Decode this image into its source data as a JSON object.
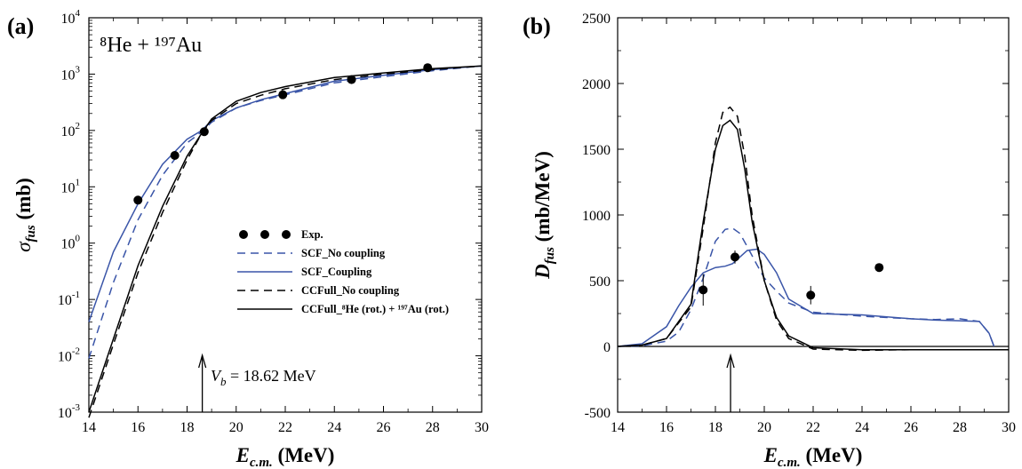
{
  "chart_data": [
    {
      "type": "line",
      "panel_label": "(a)",
      "annotation": "⁸He + ¹⁹⁷Au",
      "arrow_label": "V_b = 18.62 MeV",
      "arrow_label_parts": {
        "symbol": "V",
        "sub": "b",
        "rest": " = 18.62 MeV"
      },
      "arrow_x": 18.62,
      "xlabel": "E_c.m. (MeV)",
      "ylabel": "σ_fus (mb)",
      "xlim": [
        14,
        30
      ],
      "ylim": [
        0.001,
        10000
      ],
      "yscale": "log",
      "xticks": [
        "14",
        "16",
        "18",
        "20",
        "22",
        "24",
        "26",
        "28",
        "30"
      ],
      "yticks": [
        {
          "base": "10",
          "exp": "-3"
        },
        {
          "base": "10",
          "exp": "-2"
        },
        {
          "base": "10",
          "exp": "-1"
        },
        {
          "base": "10",
          "exp": "0"
        },
        {
          "base": "10",
          "exp": "1"
        },
        {
          "base": "10",
          "exp": "2"
        },
        {
          "base": "10",
          "exp": "3"
        },
        {
          "base": "10",
          "exp": "4"
        }
      ],
      "legend_position": "center-right",
      "series": [
        {
          "name": "Exp.",
          "style": "markers",
          "color": "#000000",
          "x": [
            16.0,
            17.5,
            18.7,
            21.9,
            24.7,
            27.8
          ],
          "y": [
            5.8,
            36,
            95,
            430,
            800,
            1300
          ]
        },
        {
          "name": "SCF_No coupling",
          "style": "dashed",
          "color": "#3a55a8",
          "x": [
            14,
            15,
            16,
            17,
            18,
            18.6,
            19,
            20,
            21,
            22,
            24,
            26,
            28,
            30
          ],
          "y": [
            0.009,
            0.2,
            2.6,
            16,
            60,
            95,
            140,
            250,
            340,
            430,
            700,
            900,
            1150,
            1400
          ]
        },
        {
          "name": "SCF_Coupling",
          "style": "solid",
          "color": "#3a55a8",
          "x": [
            14,
            15,
            16,
            17,
            18,
            18.6,
            19,
            20,
            21,
            22,
            24,
            26,
            28,
            30
          ],
          "y": [
            0.04,
            0.7,
            5,
            25,
            70,
            100,
            150,
            250,
            350,
            450,
            750,
            950,
            1200,
            1400
          ]
        },
        {
          "name": "CCFull_No coupling",
          "style": "dashed",
          "color": "#000000",
          "x": [
            14,
            15,
            16,
            17,
            18,
            18.6,
            19,
            20,
            21,
            22,
            24,
            26,
            28,
            30
          ],
          "y": [
            0.0008,
            0.016,
            0.3,
            3.5,
            30,
            90,
            150,
            300,
            420,
            550,
            800,
            1000,
            1200,
            1400
          ]
        },
        {
          "name": "CCFull_⁸He (rot.) + ¹⁹⁷Au (rot.)",
          "style": "solid",
          "color": "#000000",
          "x": [
            14,
            15,
            16,
            17,
            18,
            18.6,
            19,
            20,
            21,
            22,
            24,
            26,
            28,
            30
          ],
          "y": [
            0.001,
            0.02,
            0.4,
            4.5,
            35,
            90,
            160,
            330,
            470,
            600,
            870,
            1050,
            1250,
            1400
          ]
        }
      ]
    },
    {
      "type": "line",
      "panel_label": "(b)",
      "xlabel": "E_c.m. (MeV)",
      "ylabel": "D_fus (mb/MeV)",
      "xlim": [
        14,
        30
      ],
      "ylim": [
        -500,
        2500
      ],
      "arrow_x": 18.62,
      "xticks": [
        "14",
        "16",
        "18",
        "20",
        "22",
        "24",
        "26",
        "28",
        "30"
      ],
      "yticks": [
        "-500",
        "0",
        "500",
        "1000",
        "1500",
        "2000",
        "2500"
      ],
      "series": [
        {
          "name": "Exp.",
          "style": "markers",
          "color": "#000000",
          "x": [
            17.5,
            18.8,
            21.9,
            24.7
          ],
          "y": [
            430,
            680,
            390,
            600
          ],
          "err": [
            120,
            50,
            70,
            0
          ]
        },
        {
          "name": "SCF_No coupling",
          "style": "dashed",
          "color": "#3a55a8",
          "x": [
            14,
            15,
            16,
            16.5,
            17,
            17.5,
            18,
            18.4,
            18.7,
            19,
            19.3,
            19.7,
            20,
            20.5,
            21,
            22,
            24,
            26,
            27,
            28,
            28.8,
            29.2,
            29.4
          ],
          "y": [
            0,
            5,
            40,
            110,
            280,
            520,
            800,
            890,
            900,
            860,
            760,
            620,
            520,
            420,
            330,
            260,
            230,
            210,
            205,
            210,
            190,
            100,
            0
          ]
        },
        {
          "name": "SCF_Coupling",
          "style": "solid",
          "color": "#3a55a8",
          "x": [
            14,
            15,
            16,
            16.5,
            17,
            17.5,
            18,
            18.4,
            18.7,
            19,
            19.3,
            19.7,
            20,
            20.5,
            21,
            22,
            24,
            26,
            27,
            28,
            28.8,
            29.2,
            29.4
          ],
          "y": [
            0,
            20,
            150,
            310,
            450,
            560,
            600,
            610,
            630,
            680,
            730,
            740,
            700,
            560,
            360,
            250,
            240,
            210,
            200,
            195,
            190,
            100,
            0
          ]
        },
        {
          "name": "CCFull_No coupling",
          "style": "dashed",
          "color": "#000000",
          "x": [
            14,
            15,
            16,
            17,
            17.5,
            18,
            18.3,
            18.6,
            18.9,
            19.2,
            19.5,
            20,
            20.5,
            21,
            22,
            24,
            26,
            28,
            30
          ],
          "y": [
            0,
            10,
            60,
            300,
            900,
            1550,
            1780,
            1820,
            1750,
            1450,
            1000,
            500,
            200,
            60,
            -20,
            -30,
            -25,
            -25,
            -25
          ]
        },
        {
          "name": "CCFull_⁸He (rot.) + ¹⁹⁷Au (rot.)",
          "style": "solid",
          "color": "#000000",
          "x": [
            14,
            15,
            16,
            17,
            17.5,
            18,
            18.3,
            18.6,
            18.9,
            19.2,
            19.5,
            20,
            20.5,
            21,
            22,
            24,
            26,
            28,
            30
          ],
          "y": [
            0,
            10,
            60,
            320,
            950,
            1500,
            1680,
            1720,
            1650,
            1350,
            950,
            500,
            220,
            80,
            -10,
            -25,
            -25,
            -25,
            -25
          ]
        }
      ]
    }
  ]
}
